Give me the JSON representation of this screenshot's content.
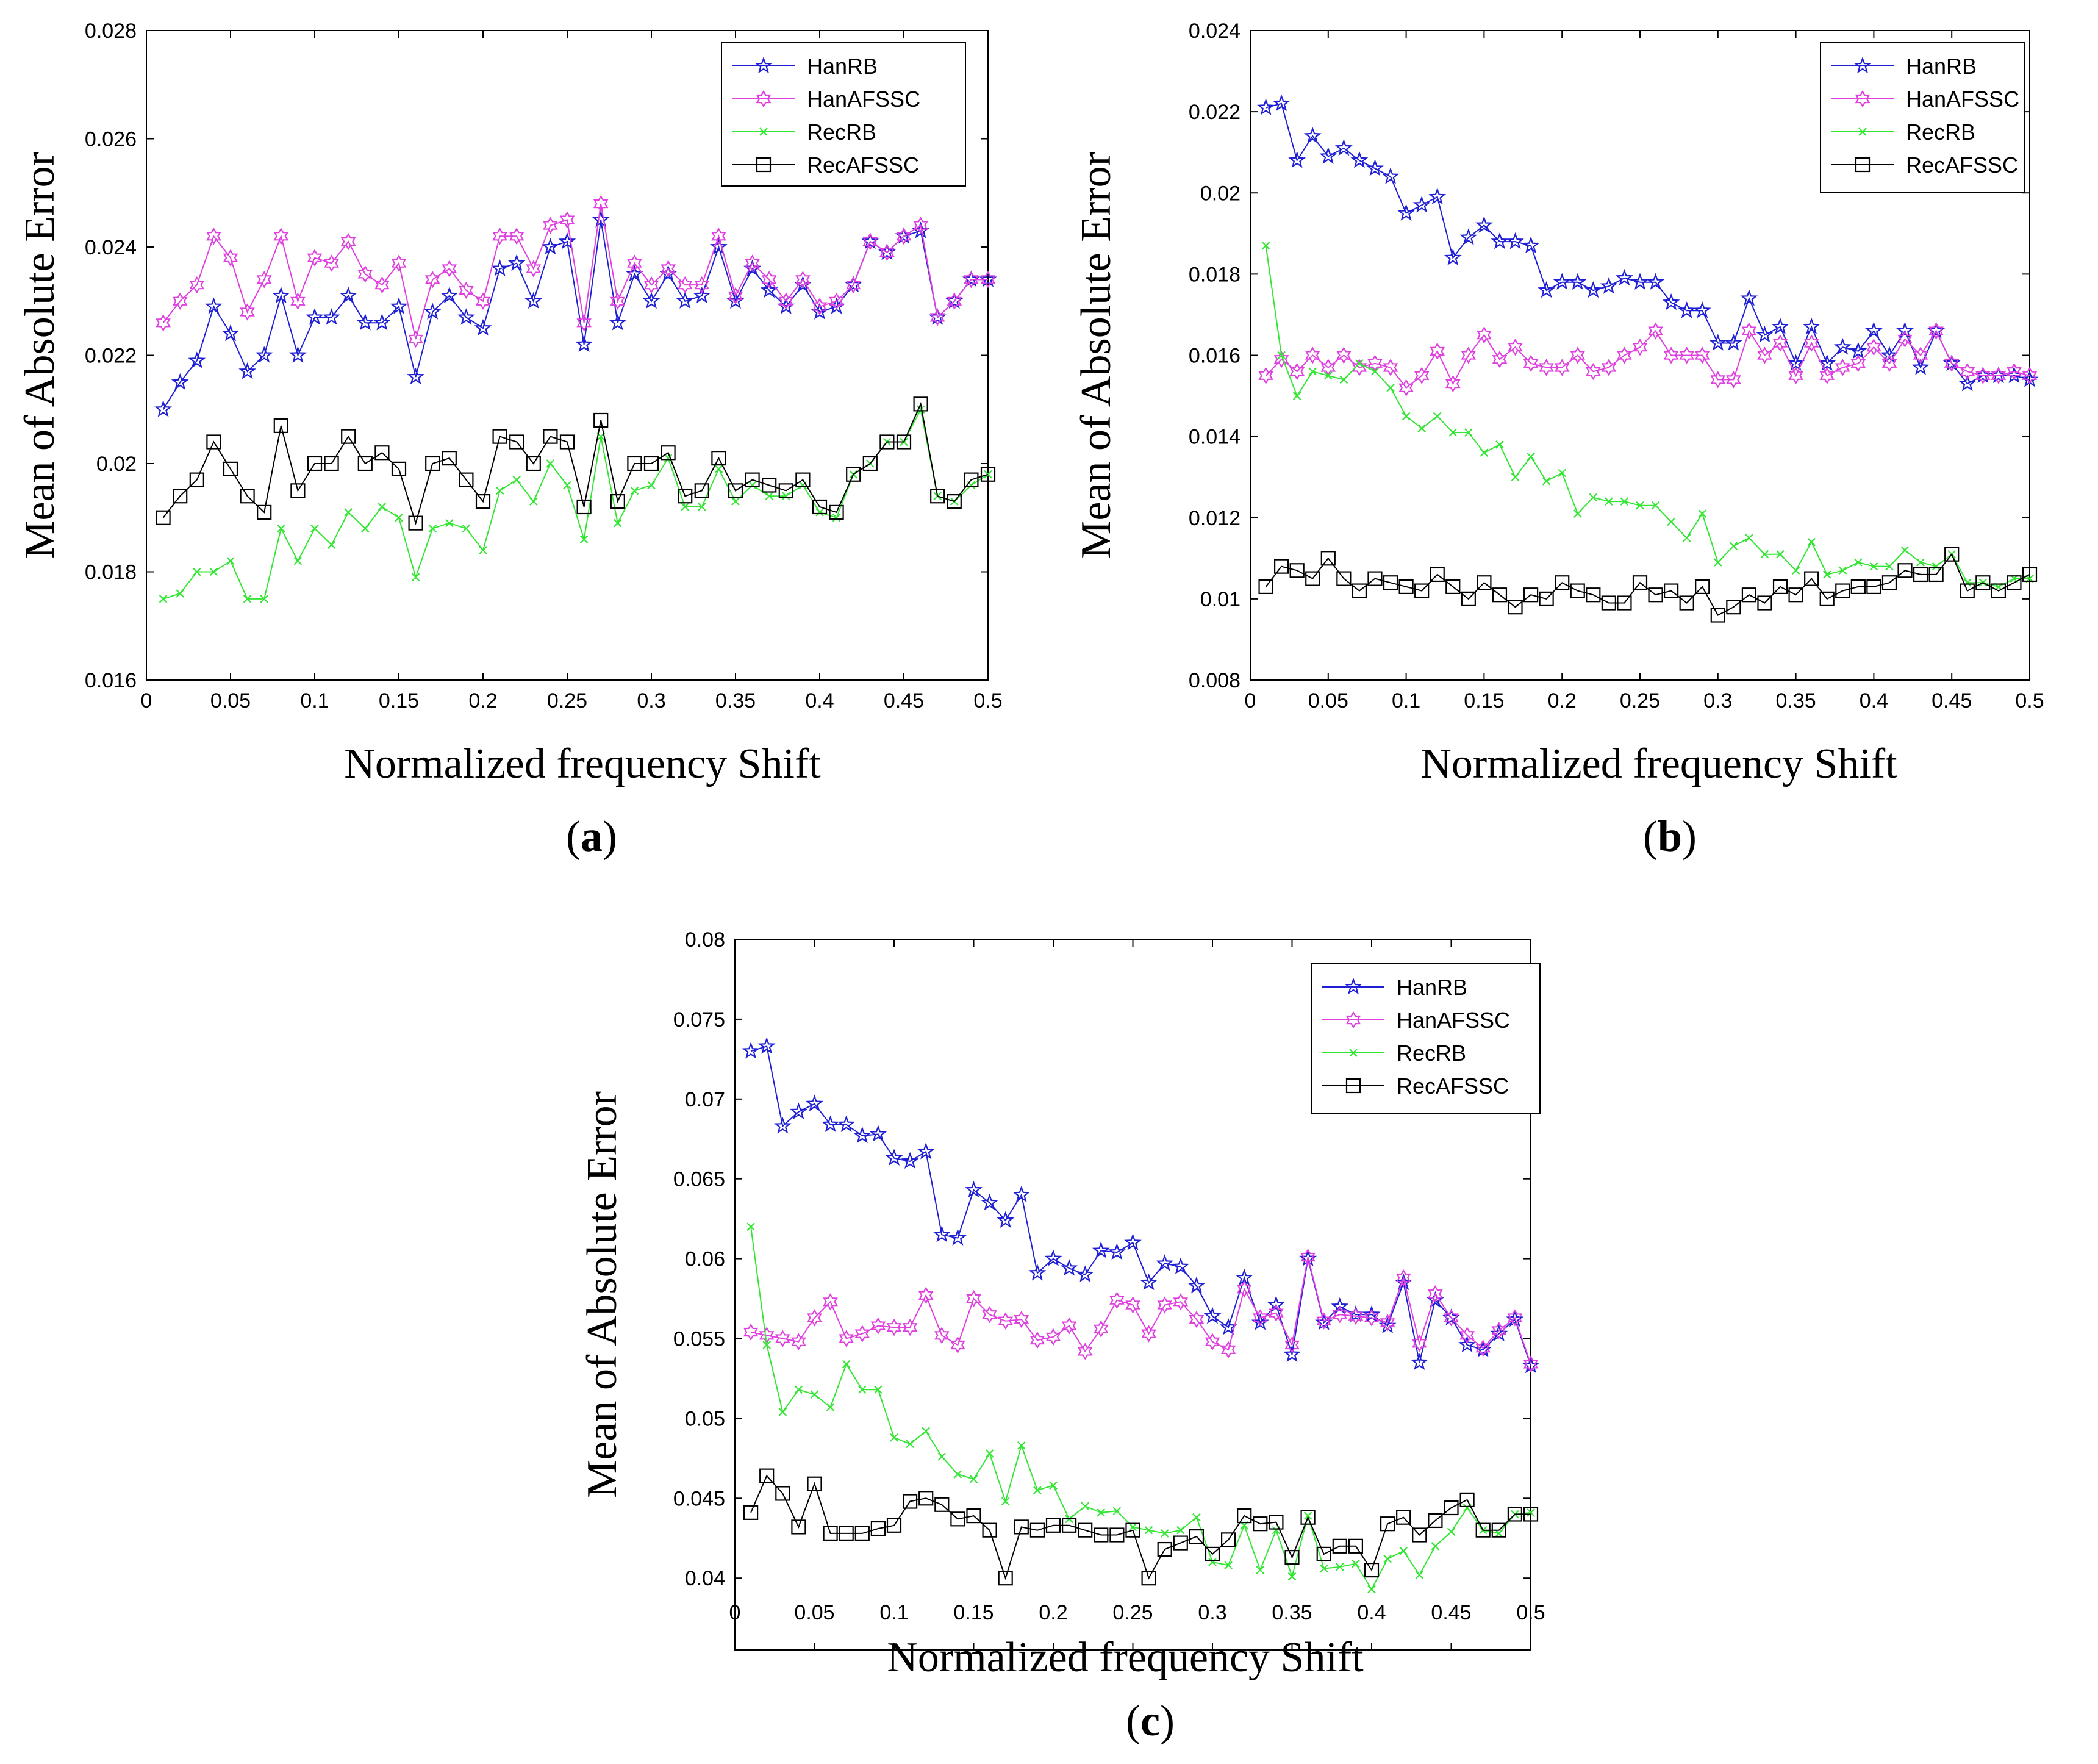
{
  "figure": {
    "captions": [
      {
        "open": "(",
        "letter": "a",
        "close": ")"
      },
      {
        "open": "(",
        "letter": "b",
        "close": ")"
      },
      {
        "open": "(",
        "letter": "c",
        "close": ")"
      }
    ]
  },
  "colors": {
    "HanRB": "#1f1fd6",
    "HanAFSSC": "#e040e0",
    "RecRB": "#33e633",
    "RecAFSSC": "#000000"
  },
  "chart_data": [
    {
      "type": "line",
      "panel": "a",
      "xlabel": "Normalized frequency Shift",
      "ylabel": "Mean of Absolute Error",
      "xlim": [
        0,
        0.5
      ],
      "ylim": [
        0.016,
        0.028
      ],
      "xticks": [
        0,
        0.05,
        0.1,
        0.15,
        0.2,
        0.25,
        0.3,
        0.35,
        0.4,
        0.45,
        0.5
      ],
      "xtick_labels": [
        "0",
        "0.05",
        "0.1",
        "0.15",
        "0.2",
        "0.25",
        "0.3",
        "0.35",
        "0.4",
        "0.45",
        "0.5"
      ],
      "yticks": [
        0.016,
        0.018,
        0.02,
        0.022,
        0.024,
        0.026,
        0.028
      ],
      "ytick_labels": [
        "0.016",
        "0.018",
        "0.02",
        "0.022",
        "0.024",
        "0.026",
        "0.028"
      ],
      "x": [
        0.01,
        0.02,
        0.03,
        0.04,
        0.05,
        0.06,
        0.07,
        0.08,
        0.09,
        0.1,
        0.11,
        0.12,
        0.13,
        0.14,
        0.15,
        0.16,
        0.17,
        0.18,
        0.19,
        0.2,
        0.21,
        0.22,
        0.23,
        0.24,
        0.25,
        0.26,
        0.27,
        0.28,
        0.29,
        0.3,
        0.31,
        0.32,
        0.33,
        0.34,
        0.35,
        0.36,
        0.37,
        0.38,
        0.39,
        0.4,
        0.41,
        0.42,
        0.43,
        0.44,
        0.45,
        0.46,
        0.47,
        0.48,
        0.49,
        0.5
      ],
      "legend": [
        "HanRB",
        "HanAFSSC",
        "RecRB",
        "RecAFSSC"
      ],
      "series": [
        {
          "name": "HanRB",
          "marker": "star",
          "values": [
            0.021,
            0.0215,
            0.0219,
            0.0229,
            0.0224,
            0.0217,
            0.022,
            0.0231,
            0.022,
            0.0227,
            0.0227,
            0.0231,
            0.0226,
            0.0226,
            0.0229,
            0.0216,
            0.0228,
            0.0231,
            0.0227,
            0.0225,
            0.0236,
            0.0237,
            0.023,
            0.024,
            0.0241,
            0.0222,
            0.0245,
            0.0226,
            0.0235,
            0.023,
            0.0235,
            0.023,
            0.0231,
            0.024,
            0.023,
            0.0236,
            0.0232,
            0.0229,
            0.0233,
            0.0228,
            0.0229,
            0.0233,
            0.0241,
            0.0239,
            0.0242,
            0.0243,
            0.0227,
            0.023,
            0.0234,
            0.0234
          ]
        },
        {
          "name": "HanAFSSC",
          "marker": "hexagram",
          "values": [
            0.0226,
            0.023,
            0.0233,
            0.0242,
            0.0238,
            0.0228,
            0.0234,
            0.0242,
            0.023,
            0.0238,
            0.0237,
            0.0241,
            0.0235,
            0.0233,
            0.0237,
            0.0223,
            0.0234,
            0.0236,
            0.0232,
            0.023,
            0.0242,
            0.0242,
            0.0236,
            0.0244,
            0.0245,
            0.0226,
            0.0248,
            0.023,
            0.0237,
            0.0233,
            0.0236,
            0.0233,
            0.0233,
            0.0242,
            0.0231,
            0.0237,
            0.0234,
            0.023,
            0.0234,
            0.0229,
            0.023,
            0.0233,
            0.0241,
            0.0239,
            0.0242,
            0.0244,
            0.0227,
            0.023,
            0.0234,
            0.0234
          ]
        },
        {
          "name": "RecRB",
          "marker": "x",
          "values": [
            0.0175,
            0.0176,
            0.018,
            0.018,
            0.0182,
            0.0175,
            0.0175,
            0.0188,
            0.0182,
            0.0188,
            0.0185,
            0.0191,
            0.0188,
            0.0192,
            0.019,
            0.0179,
            0.0188,
            0.0189,
            0.0188,
            0.0184,
            0.0195,
            0.0197,
            0.0193,
            0.02,
            0.0196,
            0.0186,
            0.0205,
            0.0189,
            0.0195,
            0.0196,
            0.0201,
            0.0192,
            0.0192,
            0.0199,
            0.0193,
            0.0196,
            0.0194,
            0.0194,
            0.0196,
            0.0191,
            0.019,
            0.0198,
            0.02,
            0.0204,
            0.0204,
            0.021,
            0.0194,
            0.0193,
            0.0196,
            0.0198
          ]
        },
        {
          "name": "RecAFSSC",
          "marker": "square",
          "values": [
            0.019,
            0.0194,
            0.0197,
            0.0204,
            0.0199,
            0.0194,
            0.0191,
            0.0207,
            0.0195,
            0.02,
            0.02,
            0.0205,
            0.02,
            0.0202,
            0.0199,
            0.0189,
            0.02,
            0.0201,
            0.0197,
            0.0193,
            0.0205,
            0.0204,
            0.02,
            0.0205,
            0.0204,
            0.0192,
            0.0208,
            0.0193,
            0.02,
            0.02,
            0.0202,
            0.0194,
            0.0195,
            0.0201,
            0.0195,
            0.0197,
            0.0196,
            0.0195,
            0.0197,
            0.0192,
            0.0191,
            0.0198,
            0.02,
            0.0204,
            0.0204,
            0.0211,
            0.0194,
            0.0193,
            0.0197,
            0.0198
          ]
        }
      ]
    },
    {
      "type": "line",
      "panel": "b",
      "xlabel": "Normalized frequency Shift",
      "ylabel": "Mean of Absolute Error",
      "xlim": [
        0,
        0.5
      ],
      "ylim": [
        0.008,
        0.024
      ],
      "xticks": [
        0,
        0.05,
        0.1,
        0.15,
        0.2,
        0.25,
        0.3,
        0.35,
        0.4,
        0.45,
        0.5
      ],
      "xtick_labels": [
        "0",
        "0.05",
        "0.1",
        "0.15",
        "0.2",
        "0.25",
        "0.3",
        "0.35",
        "0.4",
        "0.45",
        "0.5"
      ],
      "yticks": [
        0.008,
        0.01,
        0.012,
        0.014,
        0.016,
        0.018,
        0.02,
        0.022,
        0.024
      ],
      "ytick_labels": [
        "0.008",
        "0.01",
        "0.012",
        "0.014",
        "0.016",
        "0.018",
        "0.02",
        "0.022",
        "0.024"
      ],
      "x": [
        0.01,
        0.02,
        0.03,
        0.04,
        0.05,
        0.06,
        0.07,
        0.08,
        0.09,
        0.1,
        0.11,
        0.12,
        0.13,
        0.14,
        0.15,
        0.16,
        0.17,
        0.18,
        0.19,
        0.2,
        0.21,
        0.22,
        0.23,
        0.24,
        0.25,
        0.26,
        0.27,
        0.28,
        0.29,
        0.3,
        0.31,
        0.32,
        0.33,
        0.34,
        0.35,
        0.36,
        0.37,
        0.38,
        0.39,
        0.4,
        0.41,
        0.42,
        0.43,
        0.44,
        0.45,
        0.46,
        0.47,
        0.48,
        0.49,
        0.5
      ],
      "legend": [
        "HanRB",
        "HanAFSSC",
        "RecRB",
        "RecAFSSC"
      ],
      "series": [
        {
          "name": "HanRB",
          "marker": "star",
          "values": [
            0.0221,
            0.0222,
            0.0208,
            0.0214,
            0.0209,
            0.0211,
            0.0208,
            0.0206,
            0.0204,
            0.0195,
            0.0197,
            0.0199,
            0.0184,
            0.0189,
            0.0192,
            0.0188,
            0.0188,
            0.0187,
            0.0176,
            0.0178,
            0.0178,
            0.0176,
            0.0177,
            0.0179,
            0.0178,
            0.0178,
            0.0173,
            0.0171,
            0.0171,
            0.0163,
            0.0163,
            0.0174,
            0.0165,
            0.0167,
            0.0158,
            0.0167,
            0.0158,
            0.0162,
            0.0161,
            0.0166,
            0.016,
            0.0166,
            0.0157,
            0.0166,
            0.0158,
            0.0153,
            0.0155,
            0.0155,
            0.0155,
            0.0154
          ]
        },
        {
          "name": "HanAFSSC",
          "marker": "hexagram",
          "values": [
            0.0155,
            0.0159,
            0.0156,
            0.016,
            0.0157,
            0.016,
            0.0157,
            0.0158,
            0.0157,
            0.0152,
            0.0155,
            0.0161,
            0.0153,
            0.016,
            0.0165,
            0.0159,
            0.0162,
            0.0158,
            0.0157,
            0.0157,
            0.016,
            0.0156,
            0.0157,
            0.016,
            0.0162,
            0.0166,
            0.016,
            0.016,
            0.016,
            0.0154,
            0.0154,
            0.0166,
            0.016,
            0.0163,
            0.0155,
            0.0163,
            0.0155,
            0.0157,
            0.0158,
            0.0162,
            0.0158,
            0.0164,
            0.016,
            0.0166,
            0.0158,
            0.0156,
            0.0155,
            0.0155,
            0.0156,
            0.0155
          ]
        },
        {
          "name": "RecRB",
          "marker": "x",
          "values": [
            0.0187,
            0.016,
            0.015,
            0.0156,
            0.0155,
            0.0154,
            0.0158,
            0.0156,
            0.0152,
            0.0145,
            0.0142,
            0.0145,
            0.0141,
            0.0141,
            0.0136,
            0.0138,
            0.013,
            0.0135,
            0.0129,
            0.0131,
            0.0121,
            0.0125,
            0.0124,
            0.0124,
            0.0123,
            0.0123,
            0.0119,
            0.0115,
            0.0121,
            0.0109,
            0.0113,
            0.0115,
            0.0111,
            0.0111,
            0.0107,
            0.0114,
            0.0106,
            0.0107,
            0.0109,
            0.0108,
            0.0108,
            0.0112,
            0.0109,
            0.0108,
            0.0111,
            0.0104,
            0.0104,
            0.0103,
            0.0105,
            0.0105
          ]
        },
        {
          "name": "RecAFSSC",
          "marker": "square",
          "values": [
            0.0103,
            0.0108,
            0.0107,
            0.0105,
            0.011,
            0.0105,
            0.0102,
            0.0105,
            0.0104,
            0.0103,
            0.0102,
            0.0106,
            0.0103,
            0.01,
            0.0104,
            0.0101,
            0.0098,
            0.0101,
            0.01,
            0.0104,
            0.0102,
            0.0101,
            0.0099,
            0.0099,
            0.0104,
            0.0101,
            0.0102,
            0.0099,
            0.0103,
            0.0096,
            0.0098,
            0.0101,
            0.0099,
            0.0103,
            0.0101,
            0.0105,
            0.01,
            0.0102,
            0.0103,
            0.0103,
            0.0104,
            0.0107,
            0.0106,
            0.0106,
            0.0111,
            0.0102,
            0.0104,
            0.0102,
            0.0104,
            0.0106
          ]
        }
      ]
    },
    {
      "type": "line",
      "panel": "c",
      "xlabel": "Normalized frequency Shift",
      "ylabel": "Mean of Absolute Error",
      "xlim": [
        0,
        0.5
      ],
      "ylim": [
        0.0355,
        0.08
      ],
      "xticks": [
        0,
        0.05,
        0.1,
        0.15,
        0.2,
        0.25,
        0.3,
        0.35,
        0.4,
        0.45,
        0.5
      ],
      "xtick_labels": [
        "0",
        "0.05",
        "0.1",
        "0.15",
        "0.2",
        "0.25",
        "0.3",
        "0.35",
        "0.4",
        "0.45",
        "0.5"
      ],
      "yticks": [
        0.04,
        0.045,
        0.05,
        0.055,
        0.06,
        0.065,
        0.07,
        0.075,
        0.08
      ],
      "ytick_labels": [
        "0.04",
        "0.045",
        "0.05",
        "0.055",
        "0.06",
        "0.065",
        "0.07",
        "0.075",
        "0.08"
      ],
      "x": [
        0.01,
        0.02,
        0.03,
        0.04,
        0.05,
        0.06,
        0.07,
        0.08,
        0.09,
        0.1,
        0.11,
        0.12,
        0.13,
        0.14,
        0.15,
        0.16,
        0.17,
        0.18,
        0.19,
        0.2,
        0.21,
        0.22,
        0.23,
        0.24,
        0.25,
        0.26,
        0.27,
        0.28,
        0.29,
        0.3,
        0.31,
        0.32,
        0.33,
        0.34,
        0.35,
        0.36,
        0.37,
        0.38,
        0.39,
        0.4,
        0.41,
        0.42,
        0.43,
        0.44,
        0.45,
        0.46,
        0.47,
        0.48,
        0.49,
        0.5
      ],
      "legend": [
        "HanRB",
        "HanAFSSC",
        "RecRB",
        "RecAFSSC"
      ],
      "series": [
        {
          "name": "HanRB",
          "marker": "star",
          "values": [
            0.073,
            0.0733,
            0.0683,
            0.0692,
            0.0697,
            0.0684,
            0.0684,
            0.0677,
            0.0678,
            0.0663,
            0.0661,
            0.0667,
            0.0615,
            0.0613,
            0.0643,
            0.0635,
            0.0624,
            0.064,
            0.0591,
            0.06,
            0.0594,
            0.059,
            0.0605,
            0.0604,
            0.061,
            0.0585,
            0.0597,
            0.0595,
            0.0583,
            0.0564,
            0.0557,
            0.0588,
            0.056,
            0.0571,
            0.054,
            0.06,
            0.056,
            0.057,
            0.0565,
            0.0565,
            0.0558,
            0.0585,
            0.0535,
            0.0574,
            0.0563,
            0.0546,
            0.0543,
            0.0553,
            0.0562,
            0.0533
          ]
        },
        {
          "name": "HanAFSSC",
          "marker": "hexagram",
          "values": [
            0.0554,
            0.0552,
            0.055,
            0.0548,
            0.0563,
            0.0573,
            0.055,
            0.0553,
            0.0558,
            0.0557,
            0.0557,
            0.0577,
            0.0552,
            0.0546,
            0.0575,
            0.0565,
            0.0561,
            0.0562,
            0.0549,
            0.0551,
            0.0558,
            0.0542,
            0.0556,
            0.0574,
            0.0571,
            0.0553,
            0.0571,
            0.0573,
            0.0562,
            0.0548,
            0.0543,
            0.0581,
            0.0563,
            0.0566,
            0.0546,
            0.0601,
            0.0561,
            0.0565,
            0.0564,
            0.0563,
            0.056,
            0.0588,
            0.0547,
            0.0578,
            0.0563,
            0.0552,
            0.0544,
            0.0555,
            0.0563,
            0.0534
          ]
        },
        {
          "name": "RecRB",
          "marker": "x",
          "values": [
            0.062,
            0.0546,
            0.0504,
            0.0518,
            0.0515,
            0.0507,
            0.0534,
            0.0518,
            0.0518,
            0.0488,
            0.0484,
            0.0492,
            0.0476,
            0.0465,
            0.0462,
            0.0478,
            0.0448,
            0.0483,
            0.0455,
            0.0458,
            0.0437,
            0.0445,
            0.0441,
            0.0442,
            0.0432,
            0.043,
            0.0428,
            0.043,
            0.0438,
            0.041,
            0.0408,
            0.0433,
            0.0405,
            0.043,
            0.0401,
            0.0439,
            0.0406,
            0.0407,
            0.0409,
            0.0393,
            0.0412,
            0.0417,
            0.0402,
            0.042,
            0.0429,
            0.0444,
            0.043,
            0.0428,
            0.044,
            0.0441
          ]
        },
        {
          "name": "RecAFSSC",
          "marker": "square",
          "values": [
            0.0441,
            0.0464,
            0.0453,
            0.0432,
            0.0459,
            0.0428,
            0.0428,
            0.0428,
            0.0431,
            0.0433,
            0.0448,
            0.045,
            0.0446,
            0.0437,
            0.0439,
            0.043,
            0.04,
            0.0432,
            0.043,
            0.0433,
            0.0433,
            0.043,
            0.0427,
            0.0427,
            0.043,
            0.04,
            0.0418,
            0.0422,
            0.0426,
            0.0415,
            0.0424,
            0.0439,
            0.0434,
            0.0435,
            0.0413,
            0.0438,
            0.0415,
            0.042,
            0.042,
            0.0405,
            0.0434,
            0.0438,
            0.0427,
            0.0436,
            0.0444,
            0.0449,
            0.043,
            0.043,
            0.044,
            0.044
          ]
        }
      ]
    }
  ]
}
